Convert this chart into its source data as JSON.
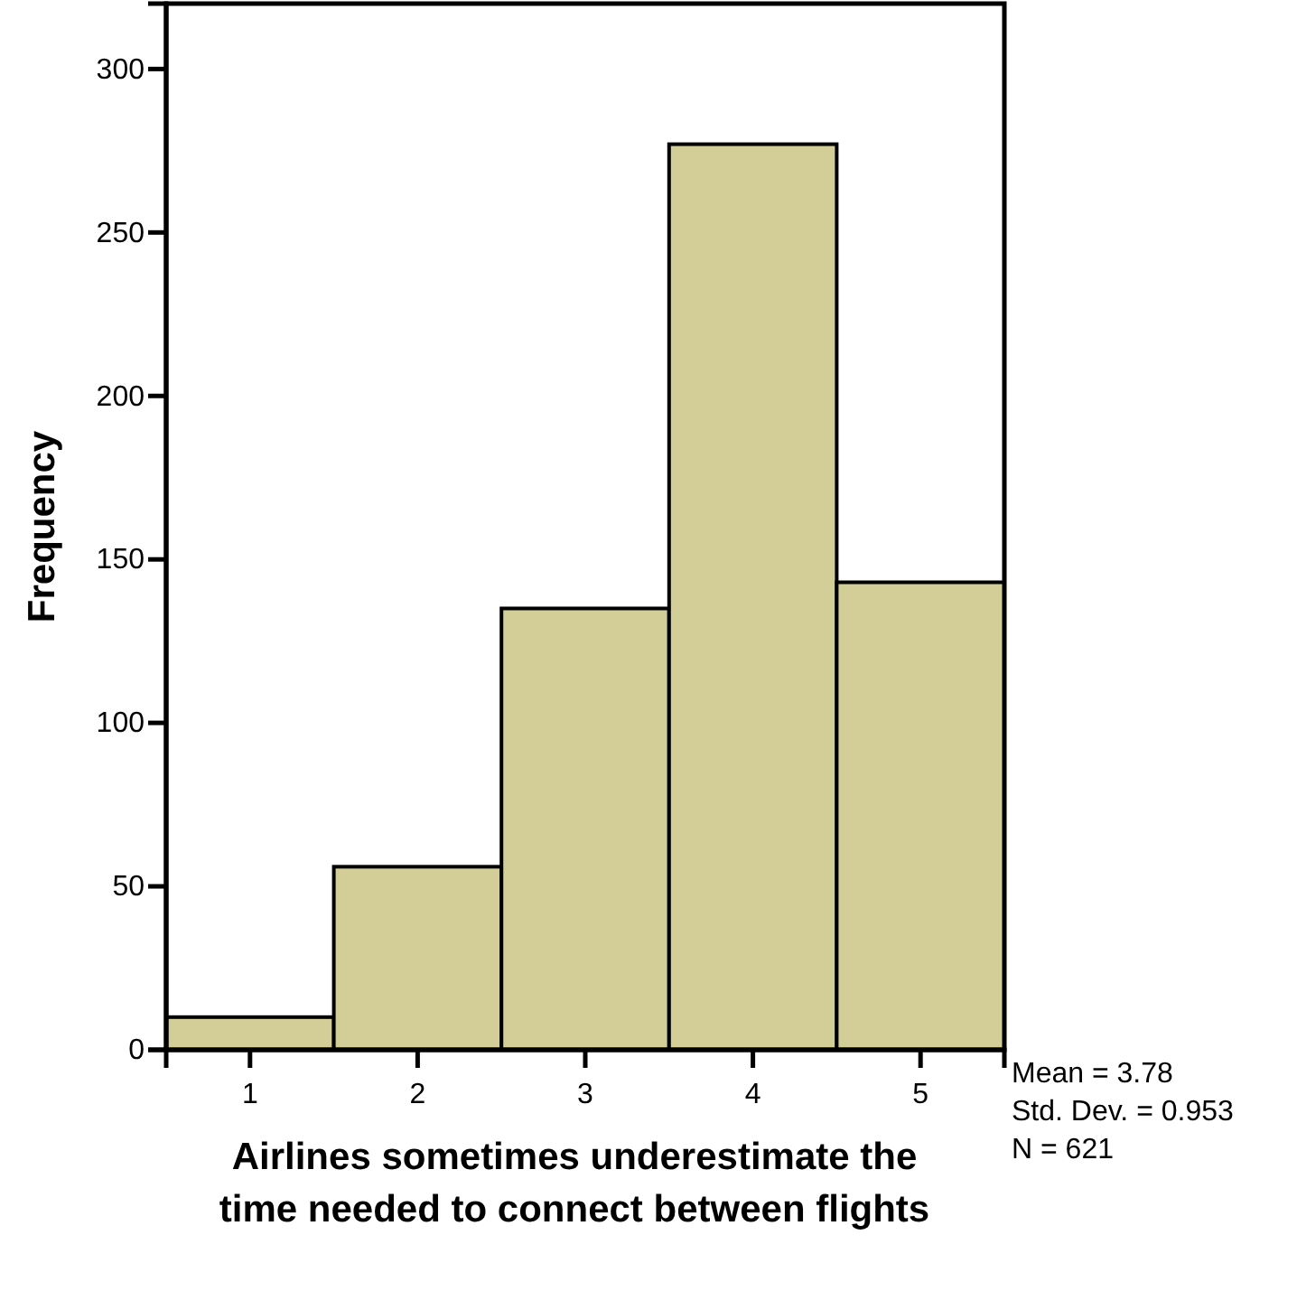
{
  "chart_data": {
    "type": "histogram",
    "xlabel": "Airlines sometimes underestimate the time needed to connect between flights",
    "ylabel": "Frequency",
    "bins": [
      0.5,
      1.5,
      2.5,
      3.5,
      4.5,
      5.5
    ],
    "values": [
      10,
      56,
      135,
      277,
      143
    ],
    "color": "#d3cd98",
    "xlim": [
      0.5,
      5.5
    ],
    "xticks": [
      1,
      2,
      3,
      4,
      5
    ],
    "ylim": [
      0,
      320
    ],
    "yticks": [
      0,
      50,
      100,
      150,
      200,
      250,
      300
    ],
    "grid": false,
    "annotations": [
      "Mean = 3.78",
      "Std. Dev. = 0.953",
      "N = 621"
    ]
  }
}
